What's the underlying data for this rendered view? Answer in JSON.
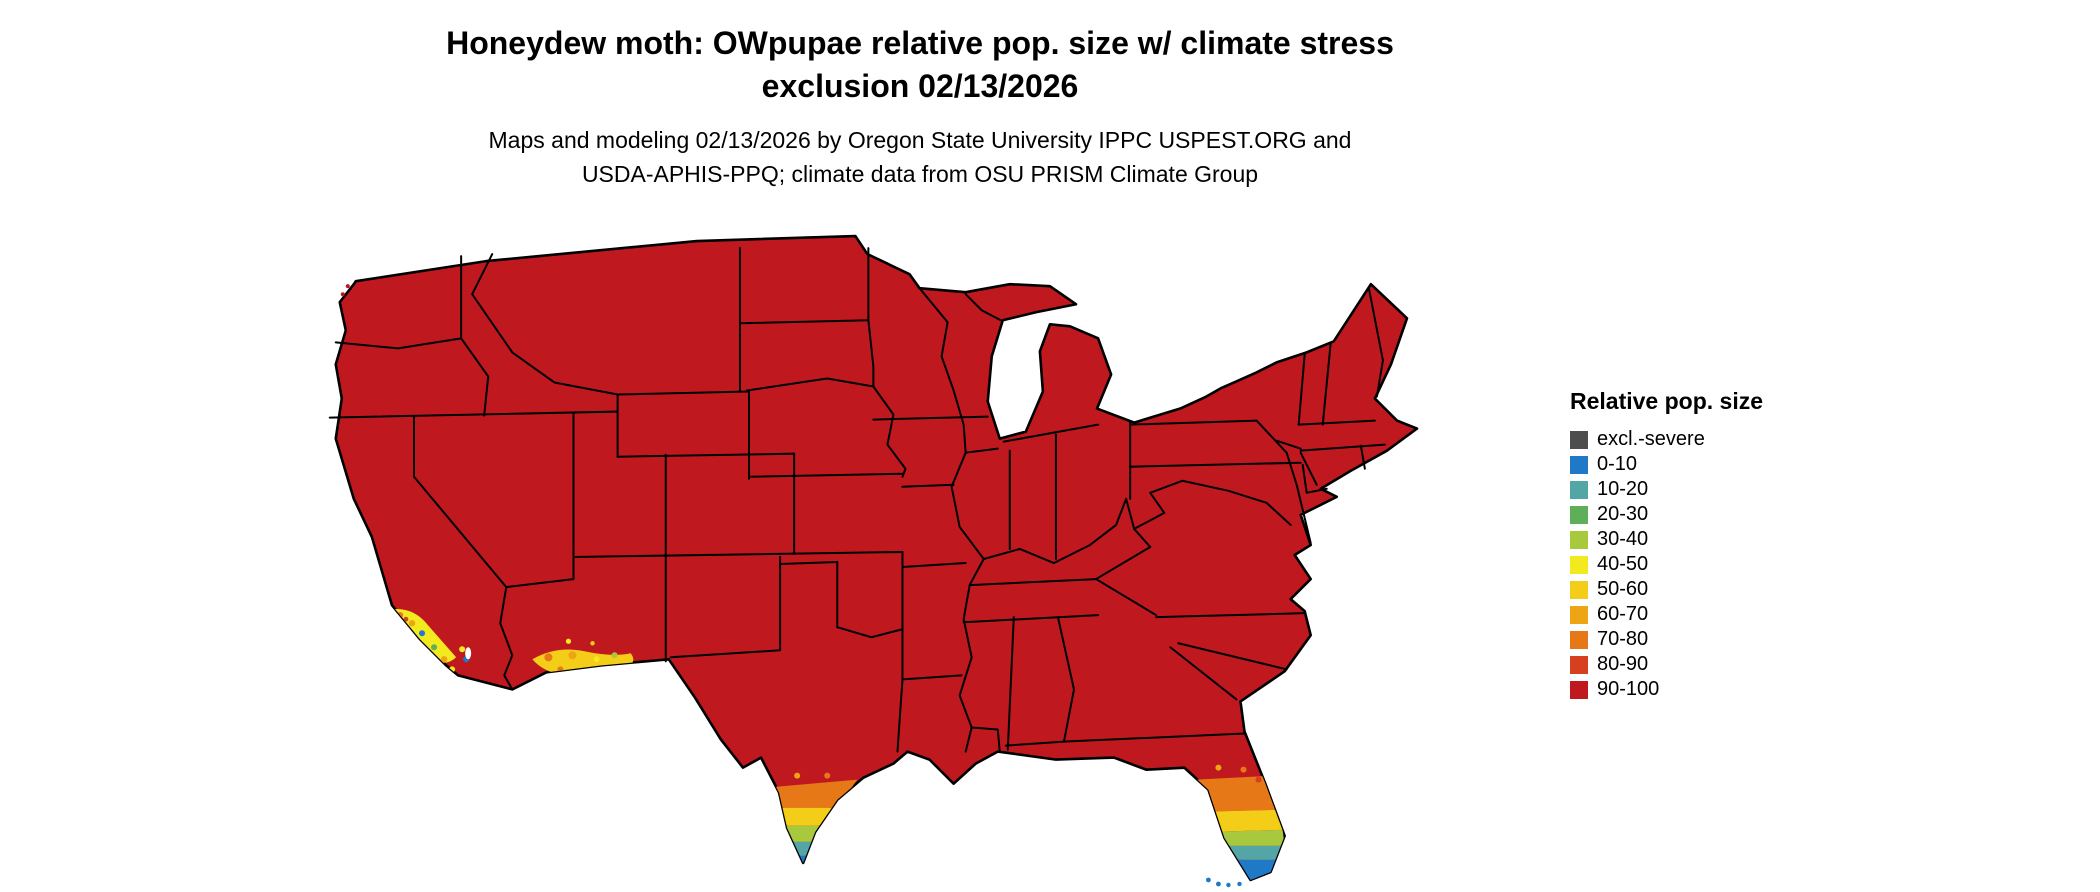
{
  "header": {
    "title_line1": "Honeydew moth: OWpupae relative pop. size w/ climate stress",
    "title_line2": "exclusion 02/13/2026",
    "subtitle_line1": "Maps and modeling 02/13/2026 by Oregon State University IPPC USPEST.ORG and",
    "subtitle_line2": "USDA-APHIS-PPQ; climate data from OSU PRISM Climate Group"
  },
  "legend": {
    "title": "Relative pop. size",
    "entries": [
      {
        "label": "excl.-severe",
        "key": "excl",
        "color": "#4d4d4d"
      },
      {
        "label": "0-10",
        "key": "p0",
        "color": "#2079c7"
      },
      {
        "label": "10-20",
        "key": "p10",
        "color": "#54a5a5"
      },
      {
        "label": "20-30",
        "key": "p20",
        "color": "#5fae58"
      },
      {
        "label": "30-40",
        "key": "p30",
        "color": "#a8c83e"
      },
      {
        "label": "40-50",
        "key": "p40",
        "color": "#f2ea1f"
      },
      {
        "label": "50-60",
        "key": "p50",
        "color": "#f3cd18"
      },
      {
        "label": "60-70",
        "key": "p60",
        "color": "#eda513"
      },
      {
        "label": "70-80",
        "key": "p70",
        "color": "#e67817"
      },
      {
        "label": "80-90",
        "key": "p80",
        "color": "#d64020"
      },
      {
        "label": "90-100",
        "key": "p90",
        "color": "#bf191f"
      }
    ]
  },
  "map": {
    "region": "Contiguous United States",
    "dominant_class": "90-100",
    "low_value_regions": [
      "southern California coast",
      "southwestern Arizona",
      "south Texas (Rio Grande Valley)",
      "south Florida and Florida Keys"
    ]
  }
}
